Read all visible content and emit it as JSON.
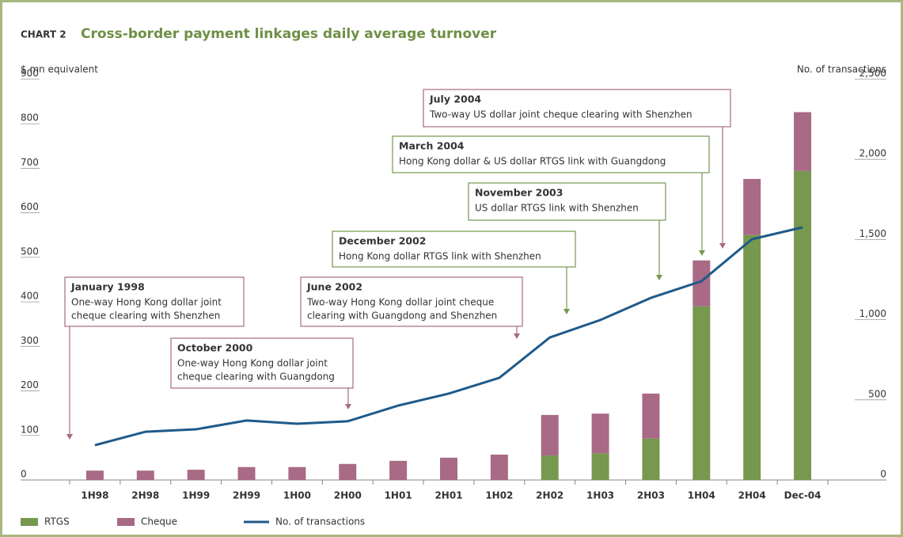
{
  "chart_data": {
    "type": "bar",
    "chart_label": "CHART 2",
    "title": "Cross-border payment linkages daily average turnover",
    "y_label": "$ mn equivalent",
    "y2_label": "No. of transactions",
    "categories": [
      "1H98",
      "2H98",
      "1H99",
      "2H99",
      "1H00",
      "2H00",
      "1H01",
      "2H01",
      "1H02",
      "2H02",
      "1H03",
      "2H03",
      "1H04",
      "2H04",
      "Dec-04"
    ],
    "stacked": true,
    "series": [
      {
        "name": "RTGS",
        "color": "#76984f",
        "values": [
          0,
          0,
          0,
          0,
          0,
          0,
          0,
          0,
          0,
          55,
          60,
          93,
          390,
          550,
          694
        ]
      },
      {
        "name": "Cheque",
        "color": "#a86a85",
        "values": [
          21,
          21,
          23,
          29,
          29,
          36,
          43,
          50,
          57,
          91,
          89,
          101,
          103,
          126,
          132
        ]
      },
      {
        "name": "No. of transactions",
        "type": "line",
        "axis": "y2",
        "color": "#1f5a8a",
        "values": [
          217,
          301,
          316,
          371,
          351,
          366,
          464,
          539,
          637,
          889,
          998,
          1136,
          1240,
          1502,
          1576
        ]
      }
    ],
    "ylim": [
      0,
      900
    ],
    "yticks": [
      0,
      100,
      200,
      300,
      400,
      500,
      600,
      700,
      800,
      900
    ],
    "y2lim": [
      0,
      2500
    ],
    "y2ticks": [
      0,
      500,
      {
        "value": 1000,
        "label": "1,000"
      },
      {
        "value": 1500,
        "label": "1,500"
      },
      {
        "value": 2000,
        "label": "2,000"
      },
      {
        "value": 2500,
        "label": "2,500"
      }
    ],
    "grid": false,
    "annotations": [
      {
        "title": "January 1998",
        "lines": [
          "One-way Hong Kong dollar joint",
          "cheque clearing with Shenzhen"
        ],
        "color": "#a86a85"
      },
      {
        "title": "October 2000",
        "lines": [
          "One-way Hong Kong dollar joint",
          "cheque clearing with Guangdong"
        ],
        "color": "#a86a85"
      },
      {
        "title": "June 2002",
        "lines": [
          "Two-way Hong Kong dollar joint cheque",
          "clearing with Guangdong and Shenzhen"
        ],
        "color": "#a86a85"
      },
      {
        "title": "December 2002",
        "lines": [
          "Hong Kong dollar RTGS link with Shenzhen"
        ],
        "color": "#76984f"
      },
      {
        "title": "November 2003",
        "lines": [
          "US dollar RTGS link with Shenzhen"
        ],
        "color": "#76984f"
      },
      {
        "title": "March 2004",
        "lines": [
          "Hong Kong dollar & US dollar RTGS link with Guangdong"
        ],
        "color": "#76984f"
      },
      {
        "title": "July 2004",
        "lines": [
          "Two-way US dollar joint cheque clearing with Shenzhen"
        ],
        "color": "#a86a85"
      }
    ]
  }
}
